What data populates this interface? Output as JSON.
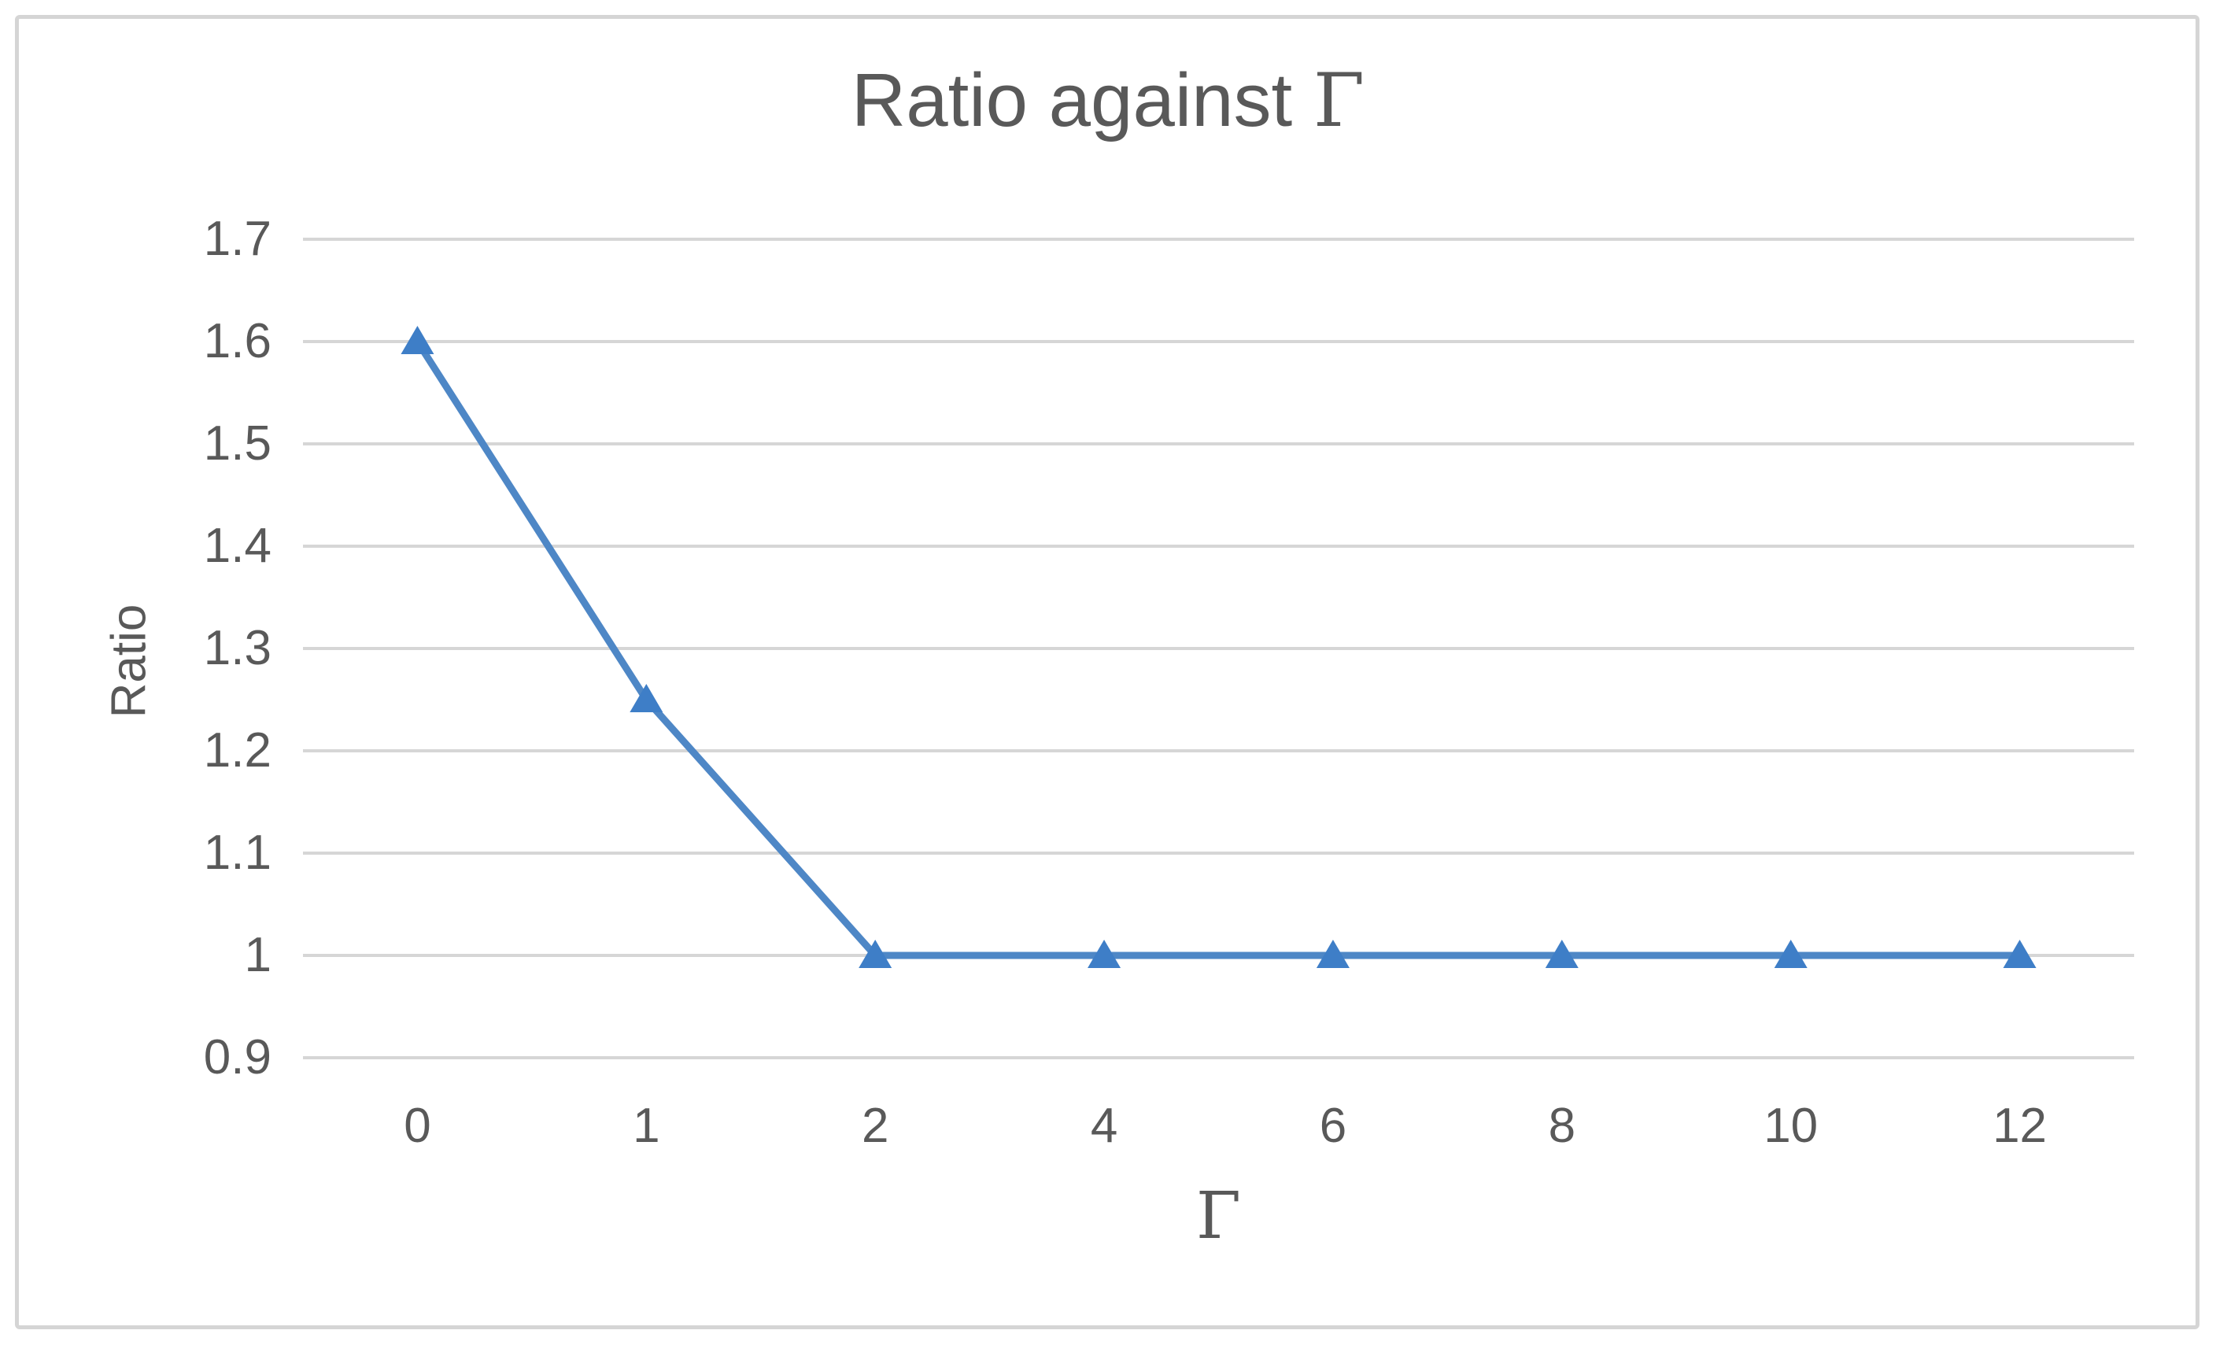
{
  "page": {
    "background_color": "#ffffff",
    "frame_border_color": "#d5d5d5"
  },
  "chart": {
    "title_prefix": "Ratio against ",
    "title_symbol": "Γ",
    "y_axis_title": "Ratio",
    "x_axis_title": "Γ"
  },
  "chart_data": {
    "type": "line",
    "title": "Ratio against Γ",
    "xlabel": "Γ",
    "ylabel": "Ratio",
    "categories": [
      "0",
      "1",
      "2",
      "4",
      "6",
      "8",
      "10",
      "12"
    ],
    "series": [
      {
        "name": "Ratio",
        "values": [
          1.6,
          1.25,
          1.0,
          1.0,
          1.0,
          1.0,
          1.0,
          1.0
        ]
      }
    ],
    "ytick_labels": [
      "1.7",
      "1.6",
      "1.5",
      "1.4",
      "1.3",
      "1.2",
      "1.1",
      "1",
      "0.9"
    ],
    "yticks": [
      1.7,
      1.6,
      1.5,
      1.4,
      1.3,
      1.2,
      1.1,
      1.0,
      0.9
    ],
    "ylim": [
      0.9,
      1.7
    ],
    "grid": "horizontal-only",
    "legend_position": "none",
    "marker": "triangle-up",
    "line_color": "#4e87c6",
    "marker_color": "#3e7ec7",
    "gridline_color": "#d6d6d6",
    "text_color": "#595959"
  }
}
